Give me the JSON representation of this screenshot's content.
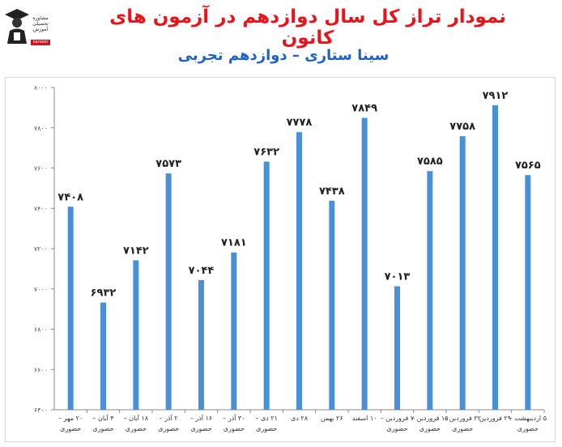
{
  "title": "نمودار تراز کل سال دوازدهم در آزمون های کانون",
  "subtitle": "سینا ستاری – دوازدهم تجربی",
  "logo": {
    "icon": "graduate-icon",
    "text": "مشاوره تحصیلی آموزش",
    "tag": "kanoon"
  },
  "chart_data": {
    "type": "bar",
    "color": "#4a90d9",
    "ylim": [
      6400,
      8000
    ],
    "yticks": [
      "۶۴۰۰",
      "۶۶۰۰",
      "۶۸۰۰",
      "۷۰۰۰",
      "۷۲۰۰",
      "۷۴۰۰",
      "۷۶۰۰",
      "۷۸۰۰",
      "۸۰۰۰"
    ],
    "ytick_values": [
      6400,
      6600,
      6800,
      7000,
      7200,
      7400,
      7600,
      7800,
      8000
    ],
    "grid": false,
    "categories": [
      [
        "۲۰ مهر –",
        "حضوری"
      ],
      [
        "۴ آبان –",
        "حضوری"
      ],
      [
        "۱۸ آبان –",
        "حضوری"
      ],
      [
        "۲ آذر –",
        "حضوری"
      ],
      [
        "۱۶ آذر –",
        "حضوری"
      ],
      [
        "۳۰ آذر –",
        "حضوری"
      ],
      [
        "۲۱ دی –",
        "حضوری"
      ],
      [
        "۲۸ دی"
      ],
      [
        "۲۶ بهمن"
      ],
      [
        "۱۰ اسفند"
      ],
      [
        "۷ فروردین –",
        "حضوری"
      ],
      [
        "۱۵ فروردین –",
        "حضوری"
      ],
      [
        "۲۲ فروردین –",
        "حضوری"
      ],
      [
        "۲۹ فروردین"
      ],
      [
        "۵ اردیبهشت –",
        "حضوری"
      ]
    ],
    "values": [
      7408,
      6932,
      7142,
      7573,
      7044,
      7181,
      7632,
      7778,
      7438,
      7849,
      7013,
      7585,
      7758,
      7912,
      7565
    ],
    "value_labels": [
      "۷۴۰۸",
      "۶۹۳۲",
      "۷۱۴۲",
      "۷۵۷۳",
      "۷۰۴۴",
      "۷۱۸۱",
      "۷۶۳۲",
      "۷۷۷۸",
      "۷۴۳۸",
      "۷۸۴۹",
      "۷۰۱۳",
      "۷۵۸۵",
      "۷۷۵۸",
      "۷۹۱۲",
      "۷۵۶۵"
    ]
  }
}
